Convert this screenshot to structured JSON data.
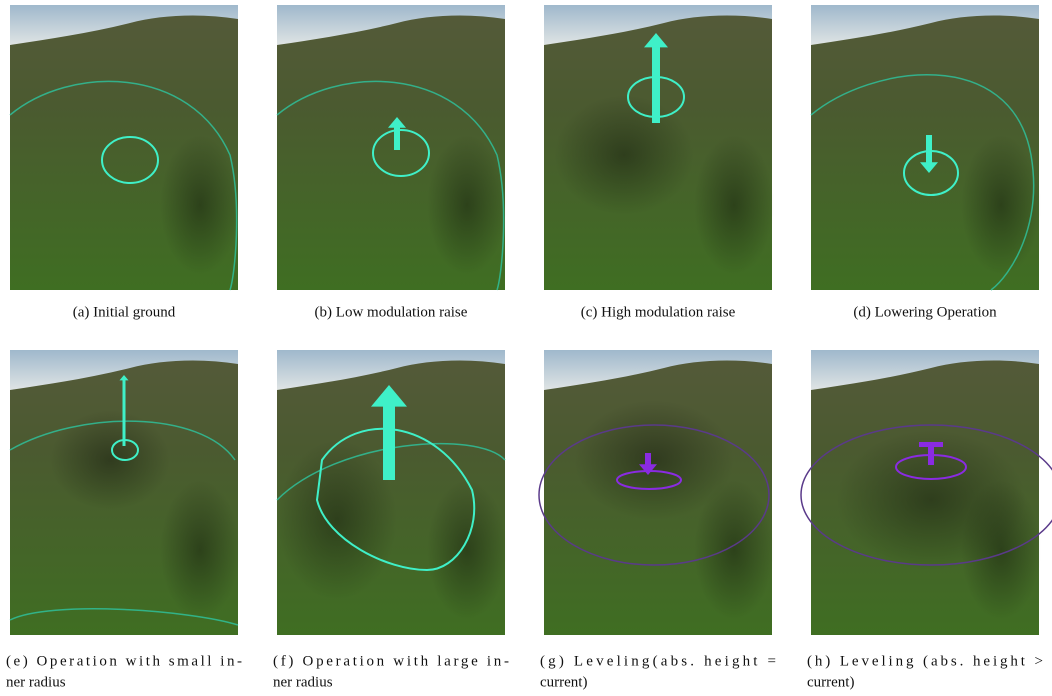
{
  "panels": [
    {
      "caption": [
        "(a) Initial ground"
      ]
    },
    {
      "caption": [
        "(b) Low modulation raise"
      ]
    },
    {
      "caption": [
        "(c) High modulation raise"
      ]
    },
    {
      "caption": [
        "(d) Lowering Operation"
      ]
    },
    {
      "caption": [
        "(e) Operation with small in-",
        "ner radius"
      ]
    },
    {
      "caption": [
        "(f) Operation with large in-",
        "ner radius"
      ]
    },
    {
      "caption": [
        "(g) Leveling(abs. height =",
        "current)"
      ]
    },
    {
      "caption": [
        "(h) Leveling (abs. height >",
        "current)"
      ]
    }
  ]
}
